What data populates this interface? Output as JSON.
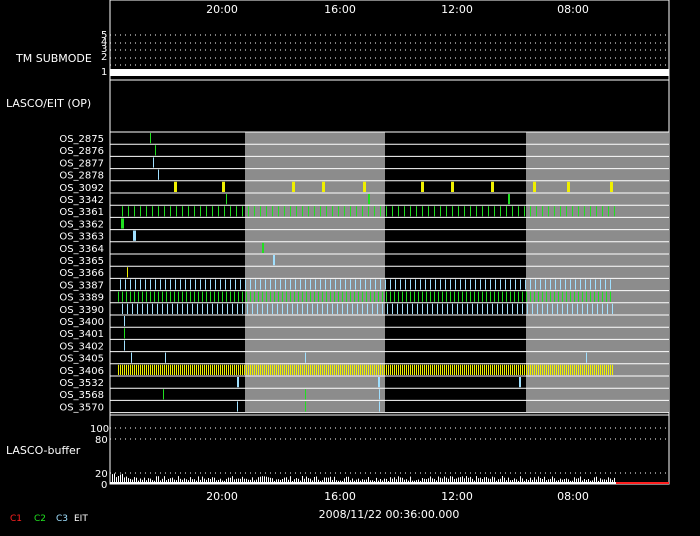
{
  "time_axis": {
    "top_labels": [
      "20:00",
      "16:00",
      "12:00",
      "08:00"
    ],
    "bottom_labels": [
      "20:00",
      "16:00",
      "12:00",
      "08:00"
    ],
    "date_label": "2008/11/22 00:36:00.000"
  },
  "tm_submode": {
    "title": "TM SUBMODE",
    "ticks": [
      "5",
      "4",
      "3",
      "2",
      "1"
    ]
  },
  "lasco_eit": {
    "title": "LASCO/EIT (OP)"
  },
  "os_rows": [
    {
      "label": "OS_2875"
    },
    {
      "label": "OS_2876"
    },
    {
      "label": "OS_2877"
    },
    {
      "label": "OS_2878"
    },
    {
      "label": "OS_3092"
    },
    {
      "label": "OS_3342"
    },
    {
      "label": "OS_3361"
    },
    {
      "label": "OS_3362"
    },
    {
      "label": "OS_3363"
    },
    {
      "label": "OS_3364"
    },
    {
      "label": "OS_3365"
    },
    {
      "label": "OS_3366"
    },
    {
      "label": "OS_3387"
    },
    {
      "label": "OS_3389"
    },
    {
      "label": "OS_3390"
    },
    {
      "label": "OS_3400"
    },
    {
      "label": "OS_3401"
    },
    {
      "label": "OS_3402"
    },
    {
      "label": "OS_3405"
    },
    {
      "label": "OS_3406"
    },
    {
      "label": "OS_3532"
    },
    {
      "label": "OS_3568"
    },
    {
      "label": "OS_3570"
    }
  ],
  "buffer": {
    "title": "LASCO-buffer",
    "ticks_top": [
      "100",
      "80"
    ],
    "ticks_bottom": [
      "20",
      "0"
    ]
  },
  "legend": [
    {
      "label": "C1",
      "color": "#ff2020"
    },
    {
      "label": "C2",
      "color": "#20e020"
    },
    {
      "label": "C3",
      "color": "#a0e0ff"
    },
    {
      "label": "EIT",
      "color": "#ffffff"
    }
  ],
  "colors": {
    "c1": "#ff2020",
    "c2": "#20e020",
    "c3": "#a0e0ff",
    "eit": "#ffffff",
    "yellow": "#f0f000",
    "shade": "#8c8c8c"
  }
}
